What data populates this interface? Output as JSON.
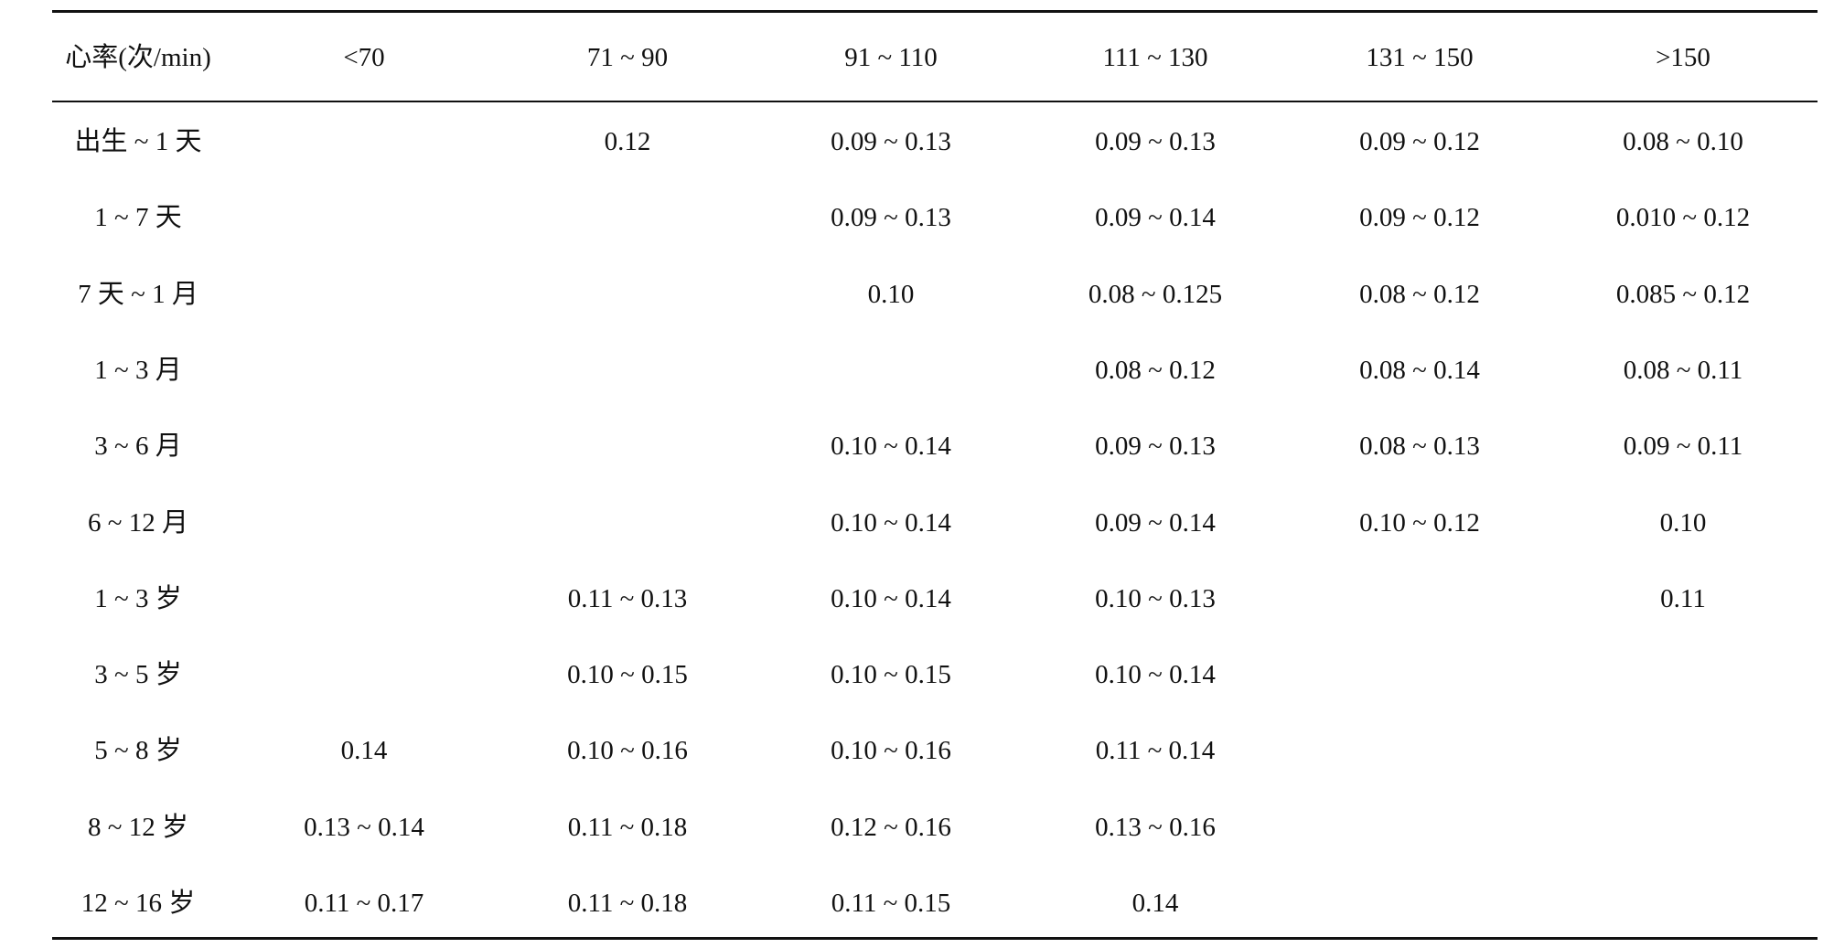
{
  "table": {
    "header": [
      "心率(次/min)",
      "<70",
      "71 ~ 90",
      "91 ~ 110",
      "111 ~ 130",
      "131 ~ 150",
      ">150"
    ],
    "rows": [
      [
        "出生 ~ 1 天",
        null,
        "0.12",
        "0.09 ~ 0.13",
        "0.09 ~ 0.13",
        "0.09 ~ 0.12",
        "0.08 ~ 0.10"
      ],
      [
        "1 ~ 7 天",
        null,
        null,
        "0.09 ~ 0.13",
        "0.09 ~ 0.14",
        "0.09 ~ 0.12",
        "0.010 ~ 0.12"
      ],
      [
        "7 天 ~ 1 月",
        null,
        null,
        "0.10",
        "0.08 ~ 0.125",
        "0.08 ~ 0.12",
        "0.085 ~ 0.12"
      ],
      [
        "1 ~ 3 月",
        null,
        null,
        null,
        "0.08 ~ 0.12",
        "0.08 ~ 0.14",
        "0.08 ~ 0.11"
      ],
      [
        "3 ~ 6 月",
        null,
        null,
        "0.10 ~ 0.14",
        "0.09 ~ 0.13",
        "0.08 ~ 0.13",
        "0.09 ~ 0.11"
      ],
      [
        "6 ~ 12 月",
        null,
        null,
        "0.10 ~ 0.14",
        "0.09 ~ 0.14",
        "0.10 ~ 0.12",
        "0.10"
      ],
      [
        "1 ~ 3 岁",
        null,
        "0.11 ~ 0.13",
        "0.10 ~ 0.14",
        "0.10 ~ 0.13",
        null,
        "0.11"
      ],
      [
        "3 ~ 5 岁",
        null,
        "0.10 ~ 0.15",
        "0.10 ~ 0.15",
        "0.10 ~ 0.14",
        null,
        null
      ],
      [
        "5 ~ 8 岁",
        "0.14",
        "0.10 ~ 0.16",
        "0.10 ~ 0.16",
        "0.11 ~ 0.14",
        null,
        null
      ],
      [
        "8 ~ 12 岁",
        "0.13 ~ 0.14",
        "0.11 ~ 0.18",
        "0.12 ~ 0.16",
        "0.13 ~ 0.16",
        null,
        null
      ],
      [
        "12 ~ 16 岁",
        "0.11 ~ 0.17",
        "0.11 ~ 0.18",
        "0.11 ~ 0.15",
        "0.14",
        null,
        null
      ]
    ]
  }
}
